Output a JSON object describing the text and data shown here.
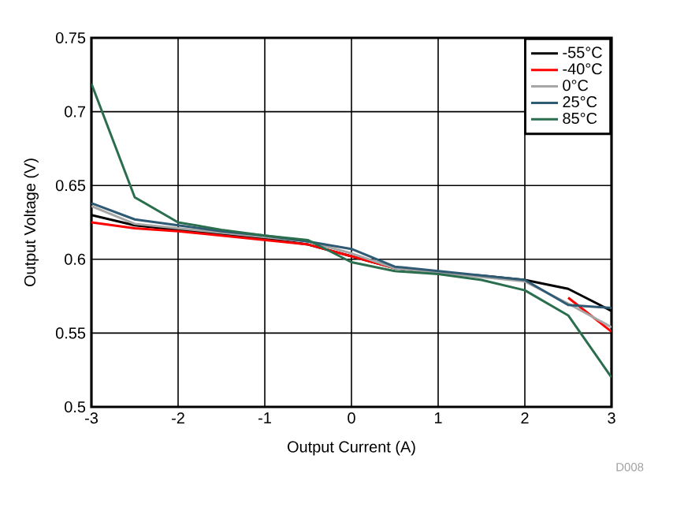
{
  "chart_data": {
    "type": "line",
    "xlabel": "Output Current (A)",
    "ylabel": "Output Voltage (V)",
    "x": [
      -3,
      -2.5,
      -2,
      -1.5,
      -1,
      -0.5,
      0,
      0.5,
      1,
      1.5,
      2,
      2.5,
      3
    ],
    "series": [
      {
        "name": "-55°C",
        "color": "#000000",
        "values": [
          0.63,
          0.623,
          0.62,
          0.617,
          0.614,
          0.61,
          0.602,
          0.594,
          0.591,
          0.589,
          0.586,
          0.58,
          0.565
        ]
      },
      {
        "name": "-40°C",
        "color": "#ff0000",
        "values": [
          0.625,
          0.621,
          0.619,
          0.616,
          0.613,
          0.61,
          0.602,
          0.594,
          null,
          null,
          null,
          0.574,
          0.551
        ]
      },
      {
        "name": "0°C",
        "color": "#a6a6a6",
        "values": [
          0.636,
          0.624,
          0.621,
          0.618,
          0.615,
          0.612,
          0.604,
          0.594,
          0.591,
          0.588,
          0.585,
          0.57,
          0.554
        ]
      },
      {
        "name": "25°C",
        "color": "#2e5a74",
        "values": [
          0.638,
          0.627,
          0.623,
          0.619,
          0.616,
          0.612,
          0.607,
          0.595,
          0.592,
          0.589,
          0.586,
          0.569,
          0.567
        ]
      },
      {
        "name": "85°C",
        "color": "#2a6e4e",
        "values": [
          0.719,
          0.642,
          0.625,
          0.62,
          0.616,
          0.613,
          0.598,
          0.592,
          0.59,
          0.586,
          0.579,
          0.562,
          0.52
        ]
      }
    ],
    "xlim": [
      -3,
      3
    ],
    "ylim": [
      0.5,
      0.75
    ],
    "xticks": [
      -3,
      -2,
      -1,
      0,
      1,
      2,
      3
    ],
    "yticks": [
      0.5,
      0.55,
      0.6,
      0.65,
      0.7,
      0.75
    ],
    "grid": true,
    "legend": "top right",
    "marker": "none",
    "line_style": "solid",
    "annotations": [
      "D008"
    ]
  }
}
